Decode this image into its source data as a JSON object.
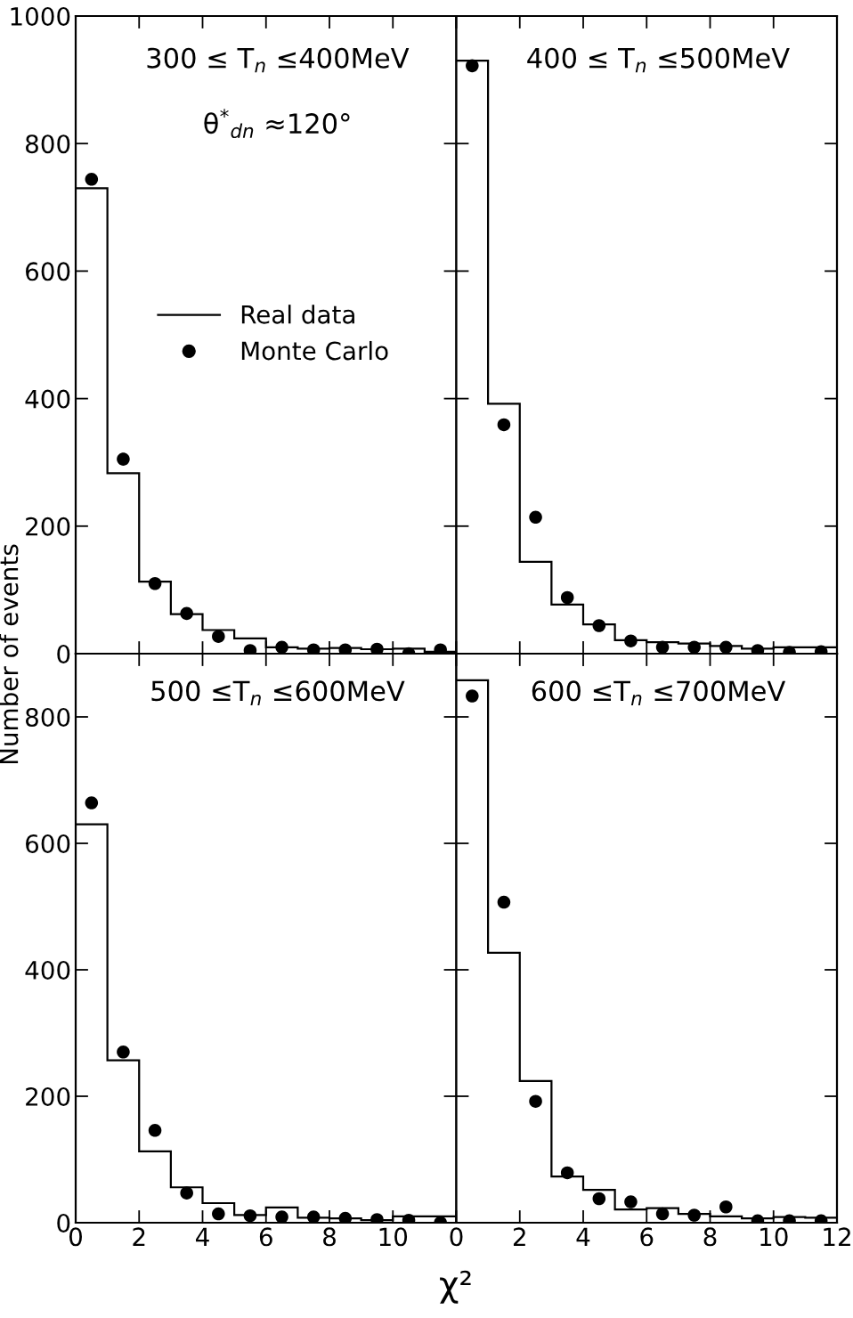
{
  "chart_data": [
    {
      "type": "histogram",
      "bins": [
        0,
        1,
        2,
        3,
        4,
        5,
        6,
        7,
        8,
        9,
        10,
        11,
        12
      ],
      "xlim": [
        0,
        12
      ],
      "xticks": [
        0,
        2,
        4,
        6,
        8,
        10,
        12
      ],
      "ylim": [
        0,
        1000
      ],
      "yticks": [
        0,
        200,
        400,
        600,
        800,
        1000
      ],
      "tick_labels": "y",
      "legend": "center",
      "marker": "circle",
      "ylabel": "Number of events",
      "annotations": [
        "300 ≤ T$_{n}$ ≤400MeV",
        "θ$^{*}$$_{dn}$ ≈120°"
      ],
      "series": [
        {
          "name": "Real data",
          "color": "#000000",
          "values": [
            730,
            283,
            113,
            62,
            37,
            24,
            10,
            8,
            9,
            7,
            8,
            3
          ]
        },
        {
          "name": "Monte Carlo",
          "type": "scatter",
          "color": "#000000",
          "x": [
            0.5,
            1.5,
            2.5,
            3.5,
            4.5,
            5.5,
            6.5,
            7.5,
            8.5,
            9.5,
            10.5,
            11.5
          ],
          "values": [
            744,
            305,
            110,
            63,
            27,
            5,
            10,
            6,
            6,
            7,
            0,
            6
          ]
        }
      ]
    },
    {
      "type": "histogram",
      "bins": [
        0,
        1,
        2,
        3,
        4,
        5,
        6,
        7,
        8,
        9,
        10,
        11,
        12
      ],
      "xlim": [
        0,
        12
      ],
      "xticks": [
        0,
        2,
        4,
        6,
        8,
        10,
        12
      ],
      "ylim": [
        0,
        1000
      ],
      "yticks": [
        0,
        200,
        400,
        600,
        800,
        1000
      ],
      "tick_labels": false,
      "marker": "circle",
      "annotations": [
        "400 ≤ T$_{n}$ ≤500MeV"
      ],
      "series": [
        {
          "color": "#000000",
          "values": [
            930,
            392,
            144,
            77,
            46,
            21,
            18,
            16,
            12,
            8,
            10,
            10
          ]
        },
        {
          "type": "scatter",
          "color": "#000000",
          "x": [
            0.5,
            1.5,
            2.5,
            3.5,
            4.5,
            5.5,
            6.5,
            7.5,
            8.5,
            9.5,
            10.5,
            11.5
          ],
          "values": [
            922,
            359,
            214,
            88,
            44,
            20,
            10,
            10,
            10,
            5,
            2,
            3
          ]
        }
      ]
    },
    {
      "type": "histogram",
      "bins": [
        0,
        1,
        2,
        3,
        4,
        5,
        6,
        7,
        8,
        9,
        10,
        11,
        12
      ],
      "xlim": [
        0,
        12
      ],
      "xticks": [
        0,
        2,
        4,
        6,
        8,
        10,
        {
          "value": 12,
          "label": null
        }
      ],
      "ylim": [
        0,
        900
      ],
      "yticks": [
        0,
        200,
        400,
        600,
        800
      ],
      "marker": "circle",
      "annotations": [
        "500 ≤T$_{n}$ ≤600MeV"
      ],
      "series": [
        {
          "color": "#000000",
          "values": [
            630,
            257,
            113,
            56,
            31,
            12,
            24,
            8,
            7,
            4,
            10,
            10
          ]
        },
        {
          "type": "scatter",
          "color": "#000000",
          "x": [
            0.5,
            1.5,
            2.5,
            3.5,
            4.5,
            5.5,
            6.5,
            7.5,
            8.5,
            9.5,
            10.5,
            11.5
          ],
          "values": [
            664,
            270,
            146,
            47,
            14,
            11,
            9,
            9,
            7,
            5,
            4,
            0
          ]
        }
      ]
    },
    {
      "type": "histogram",
      "bins": [
        0,
        1,
        2,
        3,
        4,
        5,
        6,
        7,
        8,
        9,
        10,
        11,
        12
      ],
      "xlim": [
        0,
        12
      ],
      "xticks": [
        0,
        2,
        4,
        6,
        8,
        10,
        12
      ],
      "ylim": [
        0,
        900
      ],
      "yticks": [
        0,
        200,
        400,
        600,
        800
      ],
      "tick_labels": "x",
      "marker": "circle",
      "xlabel": "χ²",
      "annotations": [
        "600 ≤T$_{n}$ ≤700MeV"
      ],
      "series": [
        {
          "color": "#000000",
          "values": [
            858,
            427,
            224,
            73,
            52,
            21,
            23,
            14,
            10,
            7,
            9,
            8
          ]
        },
        {
          "type": "scatter",
          "color": "#000000",
          "x": [
            0.5,
            1.5,
            2.5,
            3.5,
            4.5,
            5.5,
            6.5,
            7.5,
            8.5,
            9.5,
            10.5,
            11.5
          ],
          "values": [
            833,
            507,
            192,
            79,
            38,
            33,
            14,
            12,
            25,
            3,
            3,
            3
          ]
        }
      ]
    }
  ]
}
